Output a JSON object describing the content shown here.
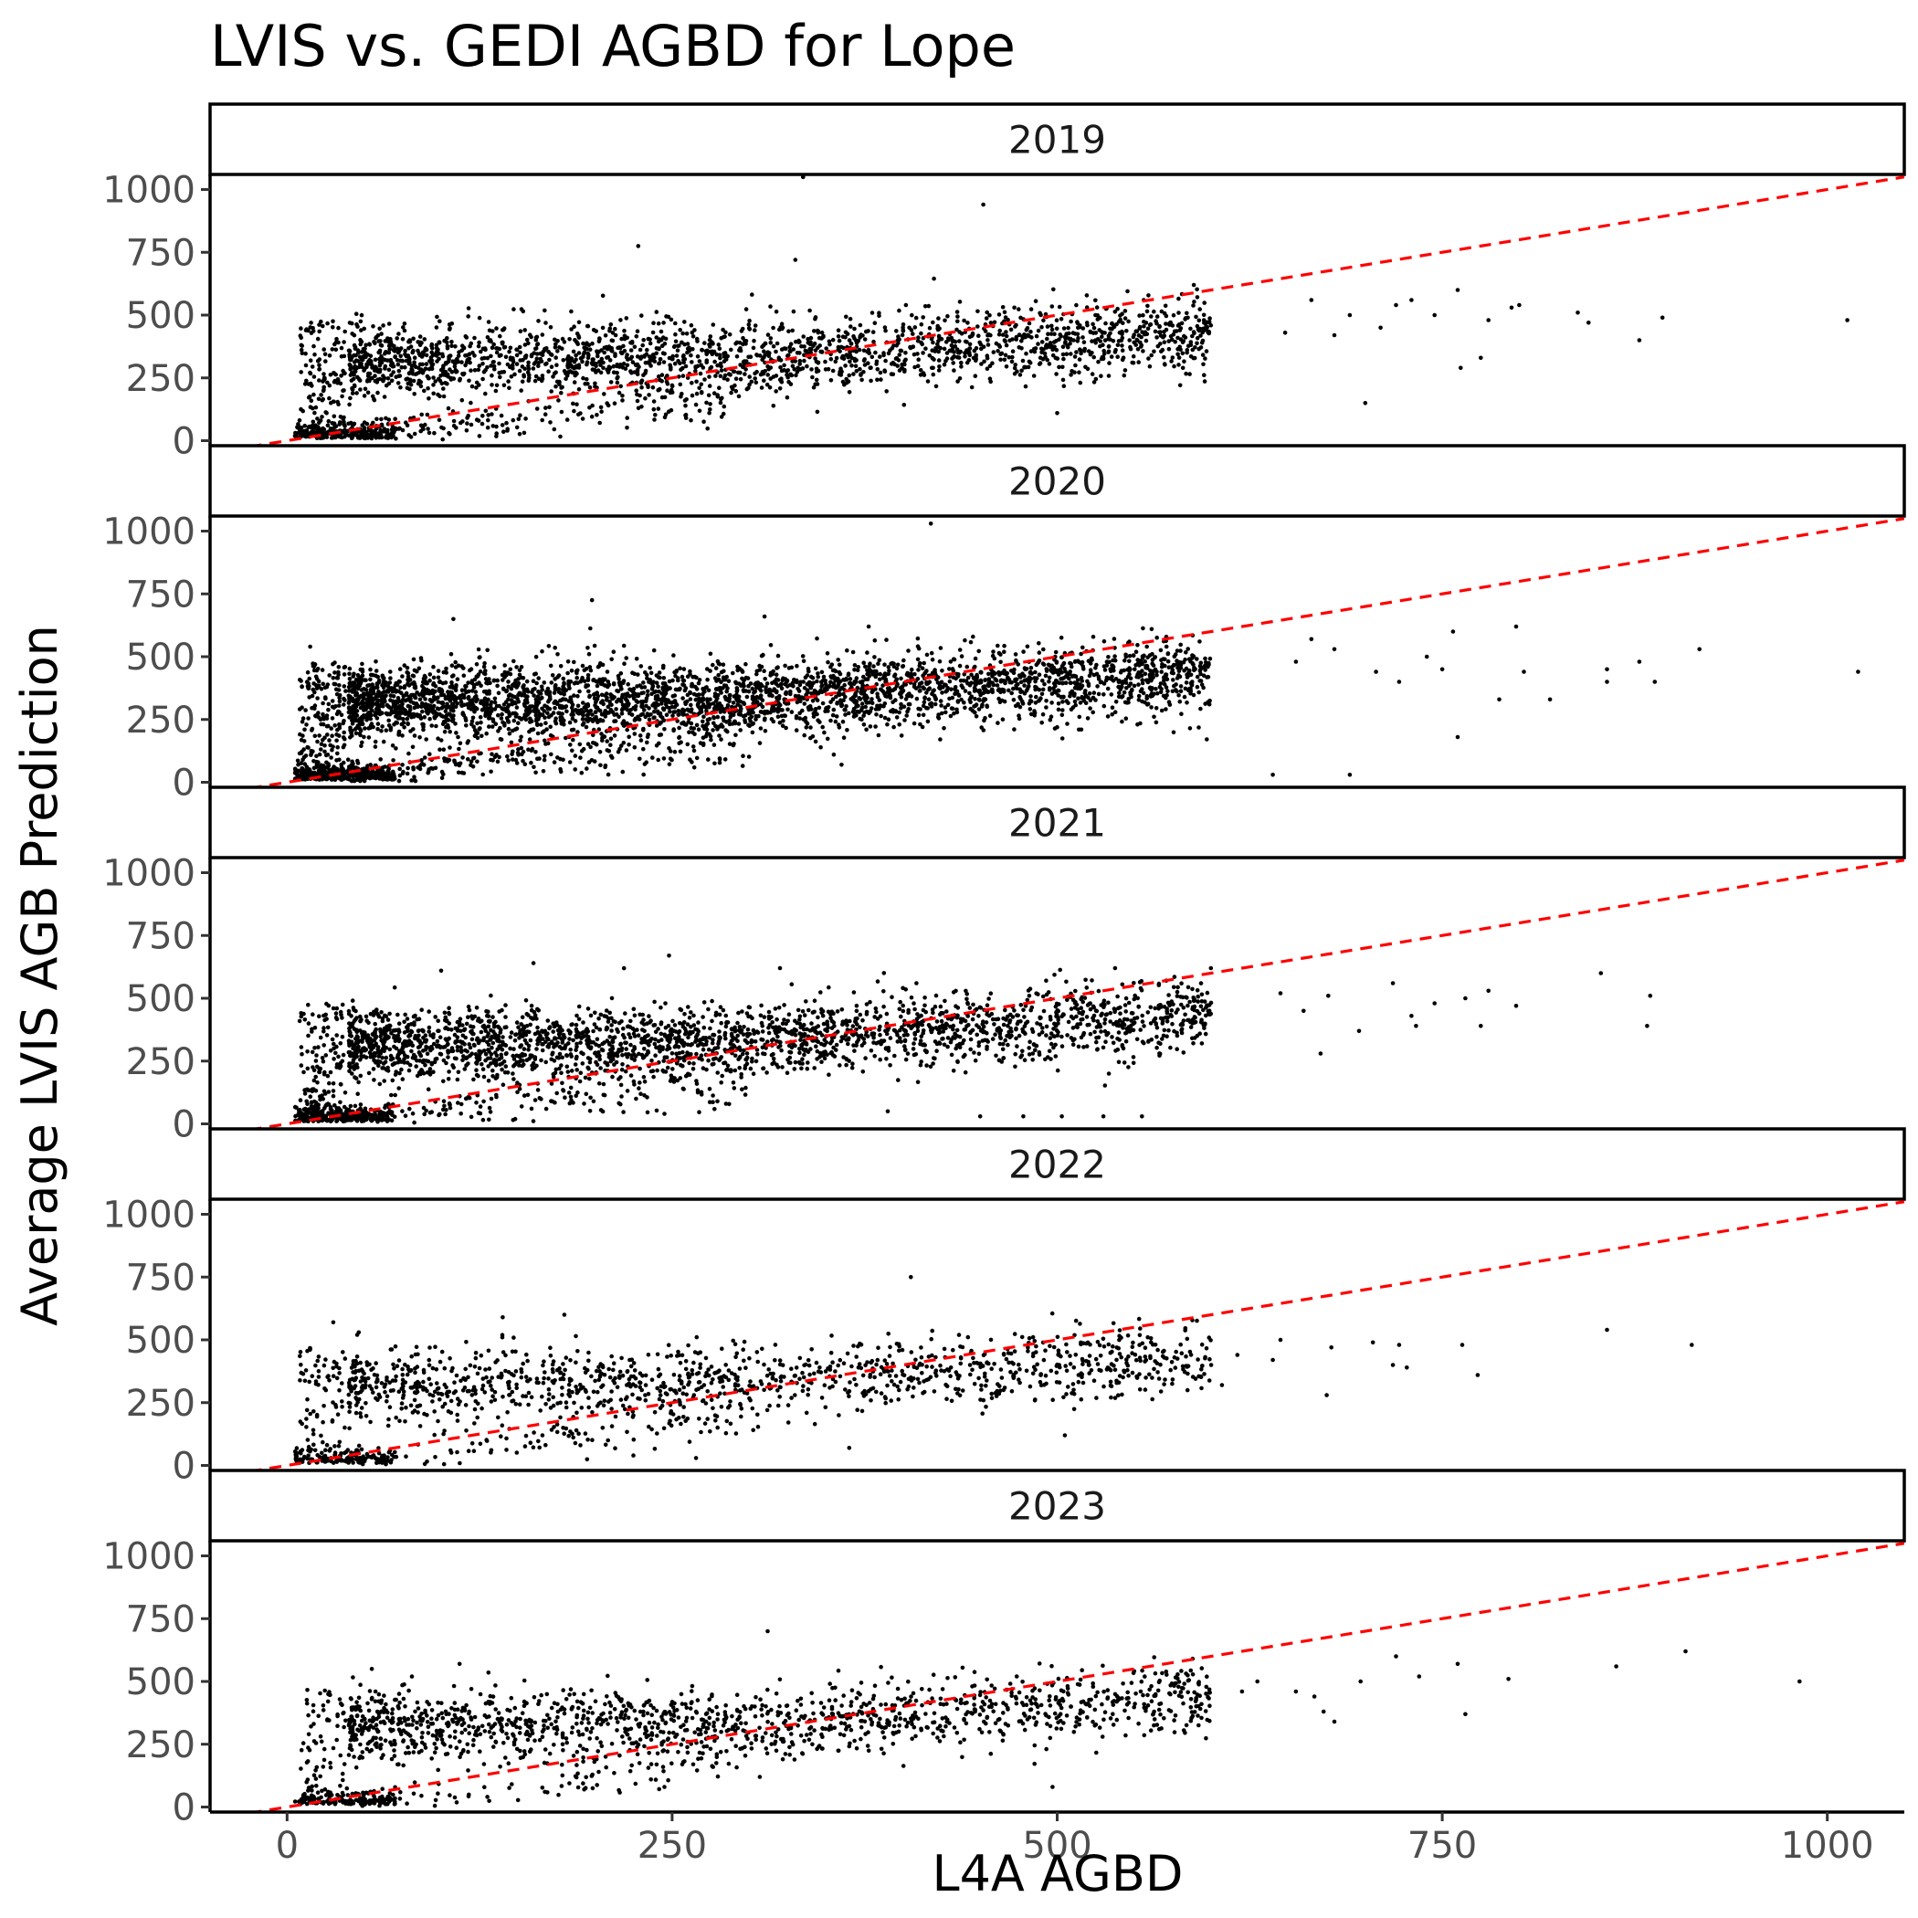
{
  "chart_data": {
    "type": "scatter",
    "title": "LVIS vs. GEDI AGBD for Lope",
    "xlabel": "L4A AGBD",
    "ylabel": "Average LVIS AGB Prediction",
    "xlim": [
      -50,
      1050
    ],
    "ylim": [
      -20,
      1060
    ],
    "x_ticks": [
      0,
      250,
      500,
      750,
      1000
    ],
    "y_ticks": [
      0,
      250,
      500,
      750,
      1000
    ],
    "x_tick_labels": [
      "0",
      "250",
      "500",
      "750",
      "1000"
    ],
    "y_tick_labels": [
      "0",
      "250",
      "500",
      "750",
      "1000"
    ],
    "grid": false,
    "reference_line": {
      "slope": 1,
      "intercept": 0,
      "style": "dashed",
      "color": "#ff0000"
    },
    "point_color": "#000000",
    "panels": [
      {
        "label": "2019",
        "density": 2600,
        "outliers": [
          {
            "x": 335,
            "y": 1050
          },
          {
            "x": 452,
            "y": 940
          },
          {
            "x": 228,
            "y": 775
          },
          {
            "x": 330,
            "y": 720
          },
          {
            "x": 420,
            "y": 645
          },
          {
            "x": 700,
            "y": 150
          },
          {
            "x": 1013,
            "y": 480
          },
          {
            "x": 878,
            "y": 400
          },
          {
            "x": 893,
            "y": 490
          },
          {
            "x": 845,
            "y": 470
          },
          {
            "x": 838,
            "y": 510
          },
          {
            "x": 800,
            "y": 540
          },
          {
            "x": 795,
            "y": 530
          },
          {
            "x": 780,
            "y": 480
          },
          {
            "x": 760,
            "y": 600
          },
          {
            "x": 762,
            "y": 290
          },
          {
            "x": 775,
            "y": 330
          },
          {
            "x": 745,
            "y": 500
          },
          {
            "x": 730,
            "y": 560
          },
          {
            "x": 720,
            "y": 540
          },
          {
            "x": 710,
            "y": 450
          },
          {
            "x": 690,
            "y": 500
          },
          {
            "x": 680,
            "y": 420
          },
          {
            "x": 665,
            "y": 560
          },
          {
            "x": 648,
            "y": 430
          },
          {
            "x": 500,
            "y": 110
          },
          {
            "x": 335,
            "y": 1050
          }
        ]
      },
      {
        "label": "2020",
        "density": 4000,
        "outliers": [
          {
            "x": 418,
            "y": 1030
          },
          {
            "x": 198,
            "y": 725
          },
          {
            "x": 1058,
            "y": 430
          },
          {
            "x": 1020,
            "y": 440
          },
          {
            "x": 917,
            "y": 530
          },
          {
            "x": 888,
            "y": 400
          },
          {
            "x": 878,
            "y": 480
          },
          {
            "x": 857,
            "y": 400
          },
          {
            "x": 857,
            "y": 450
          },
          {
            "x": 820,
            "y": 330
          },
          {
            "x": 798,
            "y": 620
          },
          {
            "x": 803,
            "y": 440
          },
          {
            "x": 787,
            "y": 330
          },
          {
            "x": 760,
            "y": 180
          },
          {
            "x": 757,
            "y": 600
          },
          {
            "x": 750,
            "y": 450
          },
          {
            "x": 740,
            "y": 500
          },
          {
            "x": 722,
            "y": 400
          },
          {
            "x": 707,
            "y": 440
          },
          {
            "x": 690,
            "y": 30
          },
          {
            "x": 640,
            "y": 30
          },
          {
            "x": 680,
            "y": 530
          },
          {
            "x": 665,
            "y": 570
          },
          {
            "x": 655,
            "y": 480
          },
          {
            "x": 310,
            "y": 660
          },
          {
            "x": 108,
            "y": 650
          },
          {
            "x": 15,
            "y": 540
          },
          {
            "x": 360,
            "y": 70
          }
        ]
      },
      {
        "label": "2021",
        "density": 2900,
        "outliers": [
          {
            "x": 885,
            "y": 510
          },
          {
            "x": 883,
            "y": 390
          },
          {
            "x": 853,
            "y": 600
          },
          {
            "x": 798,
            "y": 470
          },
          {
            "x": 780,
            "y": 530
          },
          {
            "x": 775,
            "y": 390
          },
          {
            "x": 765,
            "y": 500
          },
          {
            "x": 745,
            "y": 480
          },
          {
            "x": 733,
            "y": 390
          },
          {
            "x": 730,
            "y": 430
          },
          {
            "x": 718,
            "y": 560
          },
          {
            "x": 696,
            "y": 370
          },
          {
            "x": 676,
            "y": 510
          },
          {
            "x": 671,
            "y": 280
          },
          {
            "x": 660,
            "y": 450
          },
          {
            "x": 645,
            "y": 520
          },
          {
            "x": 555,
            "y": 30
          },
          {
            "x": 530,
            "y": 30
          },
          {
            "x": 503,
            "y": 30
          },
          {
            "x": 478,
            "y": 30
          },
          {
            "x": 450,
            "y": 30
          },
          {
            "x": 390,
            "y": 50
          },
          {
            "x": 285,
            "y": 80
          },
          {
            "x": 245,
            "y": 40
          },
          {
            "x": 160,
            "y": 640
          },
          {
            "x": 248,
            "y": 670
          },
          {
            "x": 320,
            "y": 620
          },
          {
            "x": 100,
            "y": 610
          }
        ]
      },
      {
        "label": "2022",
        "density": 1500,
        "outliers": [
          {
            "x": 405,
            "y": 750
          },
          {
            "x": 857,
            "y": 540
          },
          {
            "x": 912,
            "y": 480
          },
          {
            "x": 773,
            "y": 360
          },
          {
            "x": 763,
            "y": 480
          },
          {
            "x": 727,
            "y": 390
          },
          {
            "x": 722,
            "y": 480
          },
          {
            "x": 718,
            "y": 400
          },
          {
            "x": 705,
            "y": 490
          },
          {
            "x": 678,
            "y": 470
          },
          {
            "x": 675,
            "y": 280
          },
          {
            "x": 645,
            "y": 500
          },
          {
            "x": 640,
            "y": 420
          },
          {
            "x": 617,
            "y": 440
          },
          {
            "x": 607,
            "y": 320
          },
          {
            "x": 600,
            "y": 400
          },
          {
            "x": 505,
            "y": 120
          },
          {
            "x": 365,
            "y": 70
          },
          {
            "x": 180,
            "y": 600
          },
          {
            "x": 140,
            "y": 590
          },
          {
            "x": 30,
            "y": 570
          }
        ]
      },
      {
        "label": "2023",
        "density": 1700,
        "outliers": [
          {
            "x": 312,
            "y": 700
          },
          {
            "x": 982,
            "y": 500
          },
          {
            "x": 908,
            "y": 620
          },
          {
            "x": 863,
            "y": 560
          },
          {
            "x": 793,
            "y": 510
          },
          {
            "x": 765,
            "y": 370
          },
          {
            "x": 760,
            "y": 570
          },
          {
            "x": 735,
            "y": 520
          },
          {
            "x": 720,
            "y": 600
          },
          {
            "x": 697,
            "y": 500
          },
          {
            "x": 680,
            "y": 340
          },
          {
            "x": 673,
            "y": 380
          },
          {
            "x": 667,
            "y": 440
          },
          {
            "x": 655,
            "y": 460
          },
          {
            "x": 630,
            "y": 500
          },
          {
            "x": 620,
            "y": 460
          },
          {
            "x": 497,
            "y": 80
          },
          {
            "x": 245,
            "y": 80
          },
          {
            "x": 55,
            "y": 550
          },
          {
            "x": 112,
            "y": 570
          }
        ]
      }
    ]
  }
}
